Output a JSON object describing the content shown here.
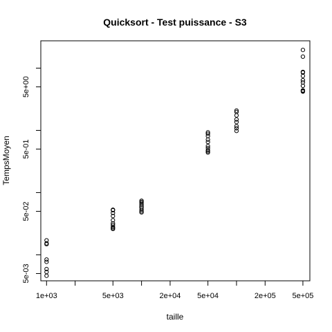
{
  "chart_data": {
    "type": "scatter",
    "title": "Quicksort - Test puissance - S3",
    "xlabel": "taille",
    "ylabel": "TempsMoyen",
    "x_scale": "log",
    "y_scale": "log",
    "xlim": [
      870,
      592000
    ],
    "ylim": [
      0.00382,
      27.5
    ],
    "x_ticks": [
      1000,
      2000,
      5000,
      10000,
      20000,
      50000,
      100000,
      200000,
      500000
    ],
    "x_tick_labels": [
      "1e+03",
      "",
      "5e+03",
      "",
      "2e+04",
      "5e+04",
      "",
      "2e+05",
      "5e+05"
    ],
    "y_ticks": [
      0.005,
      0.01,
      0.05,
      0.1,
      0.5,
      1,
      5,
      10
    ],
    "y_tick_labels": [
      "5e-03",
      "",
      "5e-02",
      "",
      "5e-01",
      "",
      "5e+00",
      ""
    ],
    "grid": false,
    "marker": "open-circle",
    "points": [
      [
        1000,
        0.0171
      ],
      [
        1000,
        0.0153
      ],
      [
        1000,
        0.0148
      ],
      [
        1000,
        0.0084
      ],
      [
        1000,
        0.0077
      ],
      [
        1000,
        0.0059
      ],
      [
        1000,
        0.0053
      ],
      [
        1000,
        0.0046
      ],
      [
        5000,
        0.053
      ],
      [
        5000,
        0.052
      ],
      [
        5000,
        0.047
      ],
      [
        5000,
        0.042
      ],
      [
        5000,
        0.036
      ],
      [
        5000,
        0.032
      ],
      [
        5000,
        0.03
      ],
      [
        5000,
        0.028
      ],
      [
        5000,
        0.027
      ],
      [
        5000,
        0.026
      ],
      [
        10000,
        0.074
      ],
      [
        10000,
        0.071
      ],
      [
        10000,
        0.068
      ],
      [
        10000,
        0.064
      ],
      [
        10000,
        0.06
      ],
      [
        10000,
        0.057
      ],
      [
        10000,
        0.053
      ],
      [
        10000,
        0.05
      ],
      [
        10000,
        0.048
      ],
      [
        50000,
        0.93
      ],
      [
        50000,
        0.88
      ],
      [
        50000,
        0.81
      ],
      [
        50000,
        0.71
      ],
      [
        50000,
        0.65
      ],
      [
        50000,
        0.56
      ],
      [
        50000,
        0.52
      ],
      [
        50000,
        0.48
      ],
      [
        50000,
        0.46
      ],
      [
        50000,
        0.44
      ],
      [
        100000,
        2.08
      ],
      [
        100000,
        1.98
      ],
      [
        100000,
        1.74
      ],
      [
        100000,
        1.5
      ],
      [
        100000,
        1.36
      ],
      [
        100000,
        1.17
      ],
      [
        100000,
        1.08
      ],
      [
        100000,
        0.98
      ],
      [
        500000,
        19.6
      ],
      [
        500000,
        15.3
      ],
      [
        500000,
        8.7
      ],
      [
        500000,
        8.5
      ],
      [
        500000,
        7.5
      ],
      [
        500000,
        6.4
      ],
      [
        500000,
        5.9
      ],
      [
        500000,
        5.2
      ],
      [
        500000,
        4.4
      ],
      [
        500000,
        4.3
      ],
      [
        500000,
        4.2
      ]
    ]
  }
}
